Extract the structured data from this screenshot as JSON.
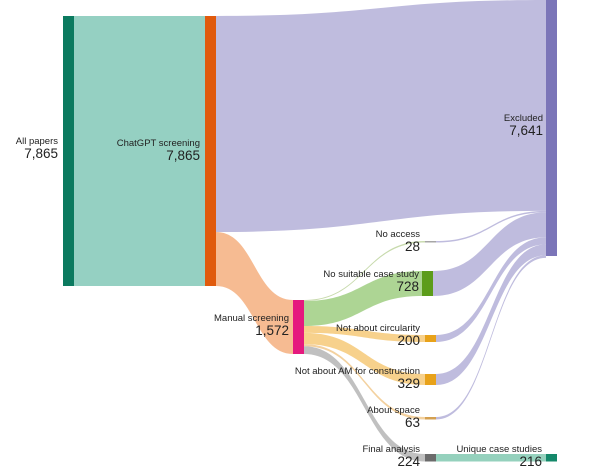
{
  "nodes": [
    {
      "id": "all",
      "label": "All papers",
      "value": "7,865",
      "color": "#0b7a5f"
    },
    {
      "id": "chatgpt",
      "label": "ChatGPT screening",
      "value": "7,865",
      "color": "#e05a0c"
    },
    {
      "id": "excluded",
      "label": "Excluded",
      "value": "7,641",
      "color": "#7b75b8"
    },
    {
      "id": "manual",
      "label": "Manual screening",
      "value": "1,572",
      "color": "#e5197e"
    },
    {
      "id": "no_access",
      "label": "No access",
      "value": "28",
      "color": "#a6a6a6"
    },
    {
      "id": "no_case",
      "label": "No suitable case study",
      "value": "728",
      "color": "#5c9c1a"
    },
    {
      "id": "not_circ",
      "label": "Not about circularity",
      "value": "200",
      "color": "#e8a21a"
    },
    {
      "id": "not_am",
      "label": "Not about AM for construction",
      "value": "329",
      "color": "#e8a21a"
    },
    {
      "id": "space",
      "label": "About space",
      "value": "63",
      "color": "#d4a050"
    },
    {
      "id": "final",
      "label": "Final analysis",
      "value": "224",
      "color": "#6b6b6b"
    },
    {
      "id": "unique",
      "label": "Unique case studies",
      "value": "216",
      "color": "#14886a"
    }
  ],
  "flows": [
    {
      "from": "all",
      "to": "chatgpt",
      "value": 7865
    },
    {
      "from": "chatgpt",
      "to": "excluded",
      "value": 6293
    },
    {
      "from": "chatgpt",
      "to": "manual",
      "value": 1572
    },
    {
      "from": "manual",
      "to": "no_access",
      "value": 28
    },
    {
      "from": "manual",
      "to": "no_case",
      "value": 728
    },
    {
      "from": "manual",
      "to": "not_circ",
      "value": 200
    },
    {
      "from": "manual",
      "to": "not_am",
      "value": 329
    },
    {
      "from": "manual",
      "to": "space",
      "value": 63
    },
    {
      "from": "manual",
      "to": "final",
      "value": 224
    },
    {
      "from": "no_access",
      "to": "excluded",
      "value": 28
    },
    {
      "from": "no_case",
      "to": "excluded",
      "value": 728
    },
    {
      "from": "not_circ",
      "to": "excluded",
      "value": 200
    },
    {
      "from": "not_am",
      "to": "excluded",
      "value": 329
    },
    {
      "from": "space",
      "to": "excluded",
      "value": 63
    },
    {
      "from": "final",
      "to": "unique",
      "value": 216
    }
  ]
}
